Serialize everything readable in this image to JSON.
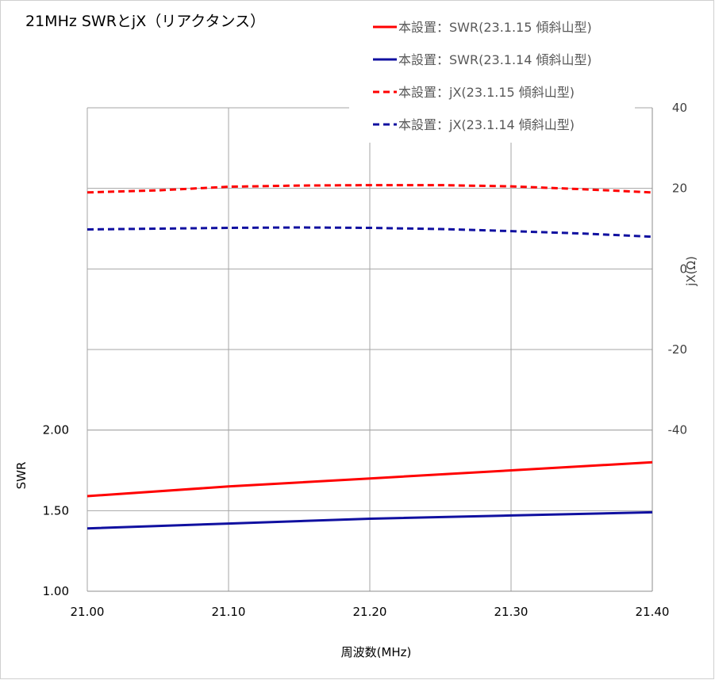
{
  "chart_data": {
    "type": "line",
    "title": "21MHz SWRとjX（リアクタンス）",
    "xlabel": "周波数(MHz)",
    "ylabel": "SWR",
    "y2label": "jX(Ω)",
    "xlim": [
      21.0,
      21.4
    ],
    "ylim": [
      1.0,
      4.0
    ],
    "y2lim": [
      -80,
      40
    ],
    "x_ticks": [
      "21.00",
      "21.10",
      "21.20",
      "21.30",
      "21.40"
    ],
    "y_ticks": [
      "1.00",
      "1.50",
      "2.00"
    ],
    "y2_ticks": [
      "40",
      "20",
      "0",
      "-20",
      "-40"
    ],
    "grid": true,
    "legend_position": "top-right",
    "series": [
      {
        "name": "本設置：SWR(23.1.15 傾斜山型)",
        "axis": "left",
        "color": "#ff0000",
        "style": "solid",
        "x": [
          21.0,
          21.1,
          21.2,
          21.3,
          21.4
        ],
        "y": [
          1.59,
          1.65,
          1.7,
          1.75,
          1.8
        ]
      },
      {
        "name": "本設置：SWR(23.1.14 傾斜山型)",
        "axis": "left",
        "color": "#1010a0",
        "style": "solid",
        "x": [
          21.0,
          21.1,
          21.2,
          21.3,
          21.4
        ],
        "y": [
          1.39,
          1.42,
          1.45,
          1.47,
          1.49
        ]
      },
      {
        "name": "本設置：jX(23.1.15 傾斜山型)",
        "axis": "right",
        "color": "#ff0000",
        "style": "dashed",
        "x": [
          21.0,
          21.05,
          21.1,
          21.15,
          21.2,
          21.25,
          21.3,
          21.35,
          21.4
        ],
        "y": [
          19,
          19.5,
          20.4,
          20.7,
          20.8,
          20.8,
          20.5,
          19.8,
          19.0
        ]
      },
      {
        "name": "本設置：jX(23.1.14 傾斜山型)",
        "axis": "right",
        "color": "#1010a0",
        "style": "dashed",
        "x": [
          21.0,
          21.05,
          21.1,
          21.15,
          21.2,
          21.25,
          21.3,
          21.35,
          21.4
        ],
        "y": [
          9.8,
          10.0,
          10.2,
          10.3,
          10.2,
          9.9,
          9.4,
          8.8,
          8.0
        ]
      }
    ]
  }
}
